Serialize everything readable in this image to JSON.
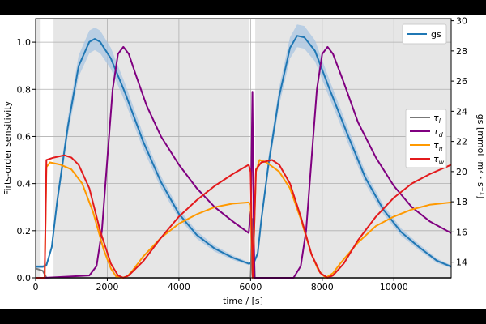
{
  "chart_data": {
    "type": "line",
    "xlabel": "time / [s]",
    "ylabel_left": "Firts-order sensitivity",
    "ylabel_right": "gs [mmol ·m² · s⁻¹]",
    "xlim": [
      0,
      11600
    ],
    "ylim_left": [
      0.0,
      1.1
    ],
    "ylim_right": [
      12.96,
      30.14
    ],
    "xticks": [
      0,
      2000,
      4000,
      6000,
      8000,
      10000
    ],
    "xtick_labels": [
      "0",
      "2000",
      "4000",
      "6000",
      "8000",
      "10000"
    ],
    "yticks_left": [
      0.0,
      0.2,
      0.4,
      0.6,
      0.8,
      1.0
    ],
    "ytick_labels_left": [
      "0.0",
      "0.2",
      "0.4",
      "0.6",
      "0.8",
      "1.0"
    ],
    "yticks_right": [
      14,
      16,
      18,
      20,
      22,
      24,
      26,
      28,
      30
    ],
    "ytick_labels_right": [
      "14",
      "16",
      "18",
      "20",
      "22",
      "24",
      "26",
      "28",
      "30"
    ],
    "grid": true,
    "background_color": "#e6e6e6",
    "light_intervals": [
      [
        140,
        500
      ],
      [
        5950,
        6130
      ]
    ],
    "legend_gs": {
      "placement": "top-right",
      "entries": [
        "gs"
      ]
    },
    "legend_sens": {
      "placement": "center-right",
      "entries": [
        "τ_l",
        "τ_d",
        "τ_π",
        "τ_w"
      ]
    },
    "series": [
      {
        "name": "gs",
        "axis": "right",
        "color": "#1f77b4",
        "band_color": "#a9c6e1",
        "x": [
          0,
          200,
          300,
          450,
          600,
          900,
          1200,
          1500,
          1650,
          1800,
          2100,
          2500,
          3000,
          3500,
          4000,
          4500,
          5000,
          5500,
          5950,
          6100,
          6200,
          6300,
          6500,
          6800,
          7100,
          7300,
          7500,
          7800,
          8200,
          8700,
          9200,
          9700,
          10200,
          10700,
          11200,
          11600
        ],
        "y": [
          13.7,
          13.7,
          13.8,
          15.0,
          18.0,
          23.0,
          27.0,
          28.6,
          28.8,
          28.6,
          27.5,
          25.2,
          22.0,
          19.3,
          17.2,
          15.8,
          14.9,
          14.3,
          13.9,
          14.0,
          14.6,
          16.8,
          20.5,
          25.0,
          28.2,
          29.0,
          28.9,
          28.0,
          25.5,
          22.5,
          19.6,
          17.5,
          16.0,
          15.0,
          14.1,
          13.7
        ],
        "band_halfwidth": [
          0.1,
          0.1,
          0.1,
          0.2,
          0.4,
          0.6,
          0.7,
          0.75,
          0.75,
          0.75,
          0.7,
          0.6,
          0.5,
          0.4,
          0.3,
          0.25,
          0.2,
          0.15,
          0.1,
          0.1,
          0.2,
          0.35,
          0.5,
          0.6,
          0.7,
          0.75,
          0.75,
          0.7,
          0.6,
          0.5,
          0.4,
          0.3,
          0.25,
          0.2,
          0.15,
          0.1
        ]
      },
      {
        "name": "τ_l",
        "axis": "left",
        "color": "#777777",
        "x": [
          0,
          200,
          270,
          300,
          6000,
          6060,
          6120,
          6180,
          11600
        ],
        "y": [
          0.04,
          0.03,
          0.01,
          0.0,
          0.0,
          0.25,
          0.0,
          0.0,
          0.0
        ]
      },
      {
        "name": "τ_d",
        "axis": "left",
        "color": "#800080",
        "x": [
          0,
          250,
          1500,
          1700,
          1850,
          2000,
          2150,
          2300,
          2450,
          2600,
          2800,
          3100,
          3500,
          4000,
          4500,
          5000,
          5500,
          5950,
          6010,
          6050,
          6080,
          6110,
          6140,
          7200,
          7400,
          7550,
          7700,
          7850,
          8000,
          8150,
          8300,
          8600,
          9000,
          9500,
          10000,
          10500,
          11000,
          11600
        ],
        "y": [
          0.0,
          0.0,
          0.01,
          0.05,
          0.2,
          0.5,
          0.8,
          0.95,
          0.98,
          0.95,
          0.86,
          0.73,
          0.6,
          0.48,
          0.38,
          0.3,
          0.24,
          0.19,
          0.3,
          0.79,
          0.3,
          0.0,
          0.0,
          0.0,
          0.05,
          0.2,
          0.5,
          0.8,
          0.95,
          0.98,
          0.95,
          0.83,
          0.66,
          0.51,
          0.39,
          0.3,
          0.24,
          0.19
        ]
      },
      {
        "name": "τ_π",
        "axis": "left",
        "color": "#ff9900",
        "x": [
          0,
          250,
          300,
          400,
          700,
          1000,
          1300,
          1600,
          1900,
          2100,
          2250,
          2400,
          2550,
          2700,
          3000,
          3500,
          4000,
          4500,
          5000,
          5500,
          5950,
          6000,
          6060,
          6150,
          6250,
          6450,
          6800,
          7100,
          7400,
          7700,
          7900,
          8100,
          8300,
          8500,
          9000,
          9500,
          10000,
          10500,
          11000,
          11600
        ],
        "y": [
          0.0,
          0.0,
          0.47,
          0.49,
          0.48,
          0.46,
          0.4,
          0.28,
          0.12,
          0.04,
          0.005,
          0.0,
          0.005,
          0.03,
          0.09,
          0.17,
          0.23,
          0.27,
          0.3,
          0.315,
          0.32,
          0.31,
          0.0,
          0.45,
          0.5,
          0.49,
          0.45,
          0.38,
          0.25,
          0.1,
          0.03,
          0.0,
          0.02,
          0.06,
          0.15,
          0.22,
          0.26,
          0.29,
          0.31,
          0.32
        ]
      },
      {
        "name": "τ_w",
        "axis": "left",
        "color": "#e31a1c",
        "x": [
          0,
          250,
          300,
          500,
          800,
          1000,
          1200,
          1500,
          1800,
          2100,
          2300,
          2450,
          2600,
          3000,
          3500,
          4000,
          4500,
          5000,
          5500,
          5950,
          6000,
          6060,
          6150,
          6300,
          6600,
          6800,
          7100,
          7400,
          7700,
          7950,
          8150,
          8300,
          8600,
          9000,
          9500,
          10000,
          10500,
          11000,
          11600
        ],
        "y": [
          0.0,
          0.0,
          0.5,
          0.51,
          0.52,
          0.51,
          0.48,
          0.38,
          0.2,
          0.06,
          0.01,
          0.0,
          0.01,
          0.07,
          0.17,
          0.26,
          0.33,
          0.39,
          0.44,
          0.48,
          0.45,
          0.0,
          0.46,
          0.49,
          0.5,
          0.48,
          0.4,
          0.26,
          0.1,
          0.02,
          0.0,
          0.01,
          0.06,
          0.16,
          0.26,
          0.34,
          0.4,
          0.44,
          0.48
        ]
      }
    ]
  }
}
